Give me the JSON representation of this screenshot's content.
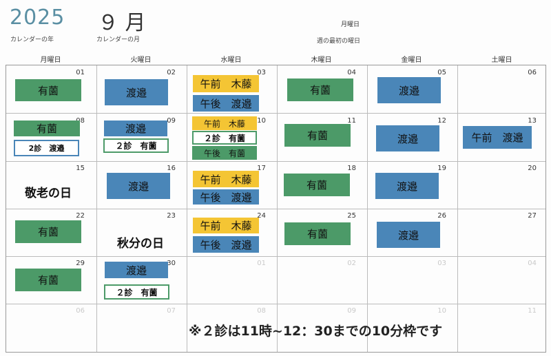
{
  "header": {
    "year": "2025",
    "year_caption": "カレンダーの年",
    "month": "９ 月",
    "month_caption": "カレンダーの月",
    "week_start": "月曜日",
    "week_start_caption": "週の最初の曜日"
  },
  "weekdays": [
    "月曜日",
    "火曜日",
    "水曜日",
    "木曜日",
    "金曜日",
    "土曜日"
  ],
  "day_numbers": {
    "r1": [
      "01",
      "02",
      "03",
      "04",
      "05",
      "06"
    ],
    "r2": [
      "08",
      "09",
      "10",
      "11",
      "12",
      "13"
    ],
    "r3": [
      "15",
      "16",
      "17",
      "18",
      "19",
      "20"
    ],
    "r4": [
      "22",
      "23",
      "24",
      "25",
      "26",
      "27"
    ],
    "r5": [
      "29",
      "30",
      "01",
      "02",
      "03",
      "04"
    ],
    "r6": [
      "06",
      "07",
      "08",
      "09",
      "10",
      "11"
    ]
  },
  "labels": {
    "arizono": "有薗",
    "watanabe": "渡邉",
    "am_kito": "午前　木藤",
    "pm_watanabe": "午後　渡邉",
    "am_watanabe": "午前　渡邉",
    "pm_arizono": "午後　有薗",
    "second_arizono": "２診　有薗",
    "second_watanabe": "2診　渡邉"
  },
  "holidays": {
    "keiro": "敬老の日",
    "shubun": "秋分の日"
  },
  "footnote": "※２診は11時~12：30までの10分枠です",
  "colors": {
    "green": "#4c9a68",
    "blue": "#4a86b8",
    "yellow": "#f4c534",
    "year_accent": "#5a8fa3"
  }
}
